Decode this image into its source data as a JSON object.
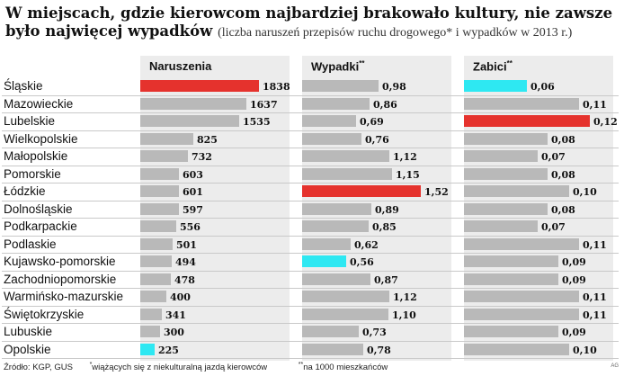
{
  "title": "W miejscach, gdzie kierowcom najbardziej brakowało kultury, nie zawsze było najwięcej wypadków",
  "subtitle": "(liczba naruszeń przepisów ruchu drogowego* i wypadków w 2013 r.)",
  "footer": {
    "source": "Źródło: KGP, GUS",
    "note1": "wiążących się z niekulturalną jazdą kierowców",
    "note2": "na 1000 mieszkańców"
  },
  "credit": "AG",
  "colors": {
    "max": "#e5322d",
    "min": "#2ee8f2",
    "default": "#b9b9b9",
    "panel": "#ececec"
  },
  "chart_data": {
    "type": "bar",
    "orientation": "horizontal",
    "categories": [
      "Śląskie",
      "Mazowieckie",
      "Lubelskie",
      "Wielkopolskie",
      "Małopolskie",
      "Pomorskie",
      "Łódzkie",
      "Dolnośląskie",
      "Podkarpackie",
      "Podlaskie",
      "Kujawsko-pomorskie",
      "Zachodniopomorskie",
      "Warmińsko-mazurskie",
      "Świętokrzyskie",
      "Lubuskie",
      "Opolskie"
    ],
    "series": [
      {
        "name": "Naruszenia",
        "marker": "",
        "values": [
          1838,
          1637,
          1535,
          825,
          732,
          603,
          601,
          597,
          556,
          501,
          494,
          478,
          400,
          341,
          300,
          225
        ],
        "labels": [
          "1838",
          "1637",
          "1535",
          "825",
          "732",
          "603",
          "601",
          "597",
          "556",
          "501",
          "494",
          "478",
          "400",
          "341",
          "300",
          "225"
        ]
      },
      {
        "name": "Wypadki",
        "marker": "**",
        "values": [
          0.98,
          0.86,
          0.69,
          0.76,
          1.12,
          1.15,
          1.52,
          0.89,
          0.85,
          0.62,
          0.56,
          0.87,
          1.12,
          1.1,
          0.73,
          0.78
        ],
        "labels": [
          "0,98",
          "0,86",
          "0,69",
          "0,76",
          "1,12",
          "1,15",
          "1,52",
          "0,89",
          "0,85",
          "0,62",
          "0,56",
          "0,87",
          "1,12",
          "1,10",
          "0,73",
          "0,78"
        ]
      },
      {
        "name": "Zabici",
        "marker": "**",
        "values": [
          0.06,
          0.11,
          0.12,
          0.08,
          0.07,
          0.08,
          0.1,
          0.08,
          0.07,
          0.11,
          0.09,
          0.09,
          0.11,
          0.11,
          0.09,
          0.1
        ],
        "labels": [
          "0,06",
          "0,11",
          "0,12",
          "0,08",
          "0,07",
          "0,08",
          "0,10",
          "0,08",
          "0,07",
          "0,11",
          "0,09",
          "0,09",
          "0,11",
          "0,11",
          "0,09",
          "0,10"
        ]
      }
    ]
  }
}
